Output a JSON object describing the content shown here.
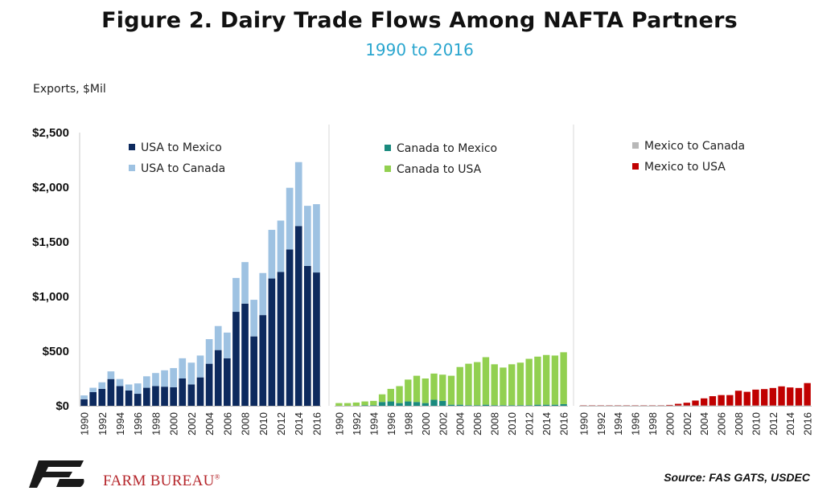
{
  "title": "Figure 2. Dairy Trade Flows Among NAFTA Partners",
  "subtitle": "1990 to 2016",
  "ylabel": "Exports, $Mil",
  "brand": "FARM BUREAU",
  "brand_mark": "®",
  "source": "Source: FAS GATS, USDEC",
  "colors": {
    "usa_to_mexico": "#0d2a5e",
    "usa_to_canada": "#9ec2e2",
    "canada_to_mexico": "#1a8a7e",
    "canada_to_usa": "#92d050",
    "mexico_to_canada": "#b8b8b8",
    "mexico_to_usa": "#c00000",
    "logo": "#1a1a1a",
    "brand": "#b5262b"
  },
  "chart_data": {
    "type": "bar",
    "stacked": true,
    "ylim": [
      0,
      2500
    ],
    "yticks": [
      "$0",
      "$500",
      "$1,000",
      "$1,500",
      "$2,000",
      "$2,500"
    ],
    "ytick_values": [
      0,
      500,
      1000,
      1500,
      2000,
      2500
    ],
    "x_tick_labels": [
      "1990",
      "1992",
      "1994",
      "1996",
      "1998",
      "2000",
      "2002",
      "2004",
      "2006",
      "2008",
      "2010",
      "2012",
      "2014",
      "2016"
    ],
    "x": [
      1990,
      1991,
      1992,
      1993,
      1994,
      1995,
      1996,
      1997,
      1998,
      1999,
      2000,
      2001,
      2002,
      2003,
      2004,
      2005,
      2006,
      2007,
      2008,
      2009,
      2010,
      2011,
      2012,
      2013,
      2014,
      2015,
      2016
    ],
    "grid": false,
    "legend_position": "top-left",
    "panels": [
      {
        "series": [
          {
            "name": "USA to Mexico",
            "color": "#0d2a5e",
            "values": [
              60,
              125,
              155,
              245,
              180,
              140,
              110,
              165,
              180,
              175,
              170,
              250,
              195,
              260,
              385,
              510,
              435,
              860,
              935,
              635,
              830,
              1165,
              1225,
              1430,
              1645,
              1280,
              1220
            ]
          },
          {
            "name": "USA to Canada",
            "color": "#9ec2e2",
            "values": [
              35,
              40,
              60,
              70,
              65,
              55,
              95,
              105,
              120,
              150,
              175,
              185,
              200,
              200,
              225,
              220,
              235,
              310,
              380,
              335,
              385,
              445,
              470,
              565,
              585,
              550,
              625
            ]
          }
        ]
      },
      {
        "series": [
          {
            "name": "Canada to Mexico",
            "color": "#1a8a7e",
            "values": [
              0,
              0,
              0,
              5,
              5,
              35,
              40,
              25,
              40,
              35,
              25,
              55,
              45,
              10,
              10,
              5,
              5,
              10,
              5,
              5,
              5,
              5,
              5,
              10,
              10,
              10,
              15
            ]
          },
          {
            "name": "Canada to USA",
            "color": "#92d050",
            "values": [
              25,
              25,
              30,
              35,
              40,
              70,
              115,
              155,
              200,
              240,
              225,
              240,
              240,
              265,
              345,
              380,
              395,
              435,
              375,
              345,
              375,
              390,
              425,
              440,
              455,
              450,
              475
            ]
          }
        ]
      },
      {
        "series": [
          {
            "name": "Mexico to Canada",
            "color": "#b8b8b8",
            "values": [
              3,
              3,
              3,
              3,
              3,
              3,
              3,
              3,
              3,
              3,
              3,
              3,
              3,
              3,
              3,
              3,
              3,
              3,
              3,
              3,
              3,
              3,
              3,
              3,
              3,
              3,
              3
            ]
          },
          {
            "name": "Mexico to USA",
            "color": "#c00000",
            "values": [
              2,
              2,
              2,
              2,
              2,
              2,
              2,
              2,
              2,
              2,
              5,
              15,
              25,
              45,
              65,
              85,
              95,
              95,
              135,
              125,
              145,
              150,
              160,
              175,
              165,
              160,
              205
            ]
          }
        ]
      }
    ]
  }
}
